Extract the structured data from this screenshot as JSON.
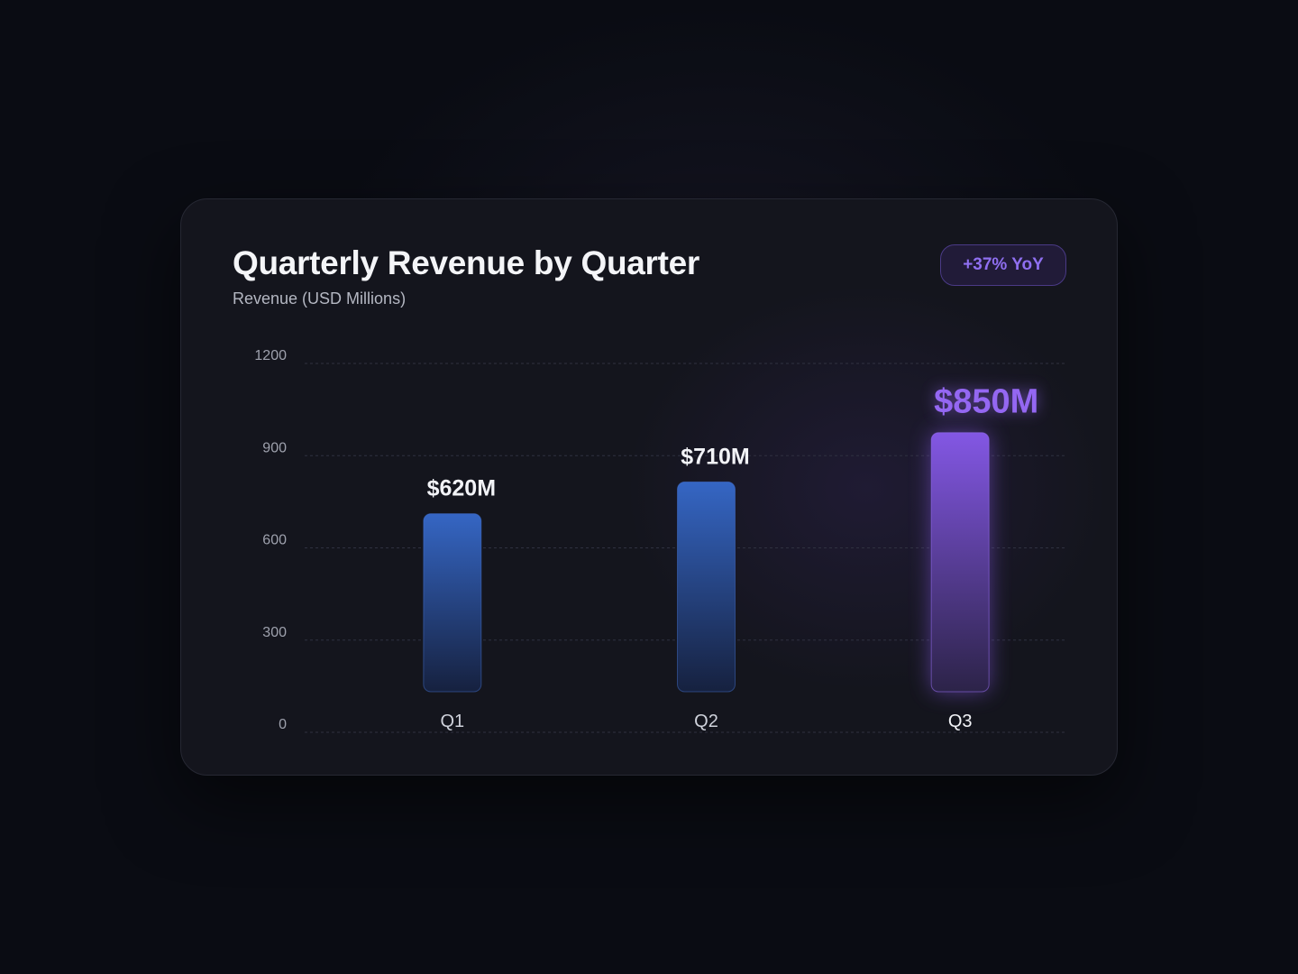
{
  "chart_data": {
    "type": "bar",
    "title": "Quarterly Revenue by Quarter",
    "subtitle": "Revenue (USD Millions)",
    "badge": "+37% YoY",
    "categories": [
      "Q1",
      "Q2",
      "Q3"
    ],
    "values": [
      620,
      710,
      850
    ],
    "data_labels": [
      "$620M",
      "$710M",
      "$850M"
    ],
    "highlight_index": 2,
    "ylim": [
      0,
      1200
    ],
    "yticks": [
      "0",
      "300",
      "600",
      "900",
      "1200"
    ],
    "grid": true,
    "colors": {
      "bar": "#3566c4",
      "bar_bottom": "#16213f",
      "highlight": "#8357e4",
      "highlight_bottom": "#2c2348",
      "highlight_label": "#9467f2"
    }
  }
}
